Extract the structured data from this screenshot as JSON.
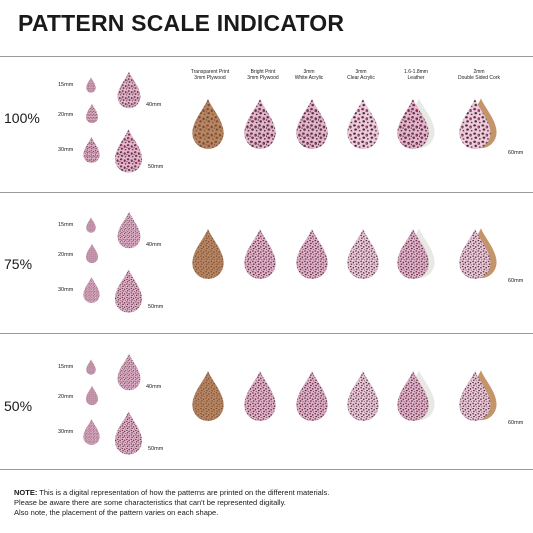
{
  "title": "PATTERN SCALE INDICATOR",
  "materials": [
    {
      "label_line1": "Transparent Print",
      "label_line2": "3mm Plywood",
      "type": "plywood"
    },
    {
      "label_line1": "Bright Print",
      "label_line2": "3mm Plywood",
      "type": "bright"
    },
    {
      "label_line1": "3mm",
      "label_line2": "White Acrylic",
      "type": "white"
    },
    {
      "label_line1": "3mm",
      "label_line2": "Clear Acrylic",
      "type": "clear"
    },
    {
      "label_line1": "1.6-1.8mm",
      "label_line2": "Leather",
      "type": "leather"
    },
    {
      "label_line1": "2mm",
      "label_line2": "Double Sided Cork",
      "type": "cork"
    }
  ],
  "scales": [
    {
      "label": "100%"
    },
    {
      "label": "75%"
    },
    {
      "label": "50%"
    }
  ],
  "sizes": {
    "s15": "15mm",
    "s20": "20mm",
    "s30": "30mm",
    "s40": "40mm",
    "s50": "50mm",
    "s60": "60mm"
  },
  "colors": {
    "pink": "#e6b6cf",
    "spot_dark": "#3a2126",
    "spot_pink": "#c2356f",
    "plywood": "#b98764",
    "plywood_spot": "#7a4e33",
    "leather_back": "#e8e8e4",
    "cork_back": "#c4956a"
  },
  "note": {
    "bold": "NOTE:",
    "line1": " This is a digital representation of how the patterns are printed on the different materials.",
    "line2": "Please be aware there are some characteristics that can't be represented digitally.",
    "line3": "Also note, the placement of the pattern varies on each shape."
  }
}
